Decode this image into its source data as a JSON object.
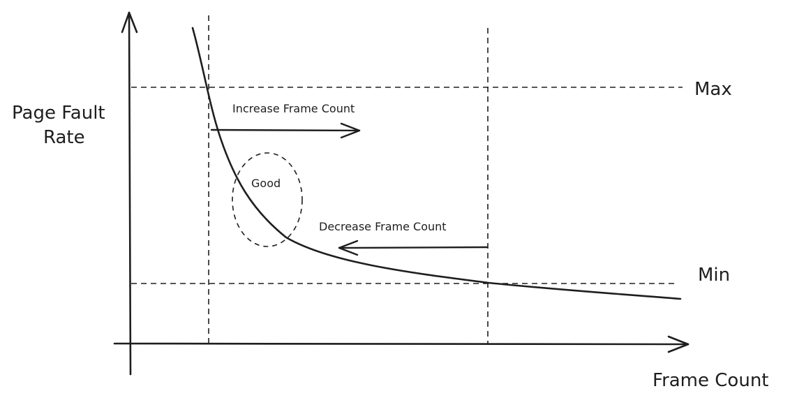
{
  "diagram": {
    "y_axis_label_line1": "Page Fault",
    "y_axis_label_line2": "Rate",
    "x_axis_label": "Frame Count",
    "max_label": "Max",
    "min_label": "Min",
    "increase_label": "Increase Frame Count",
    "decrease_label": "Decrease Frame Count",
    "good_label": "Good"
  }
}
